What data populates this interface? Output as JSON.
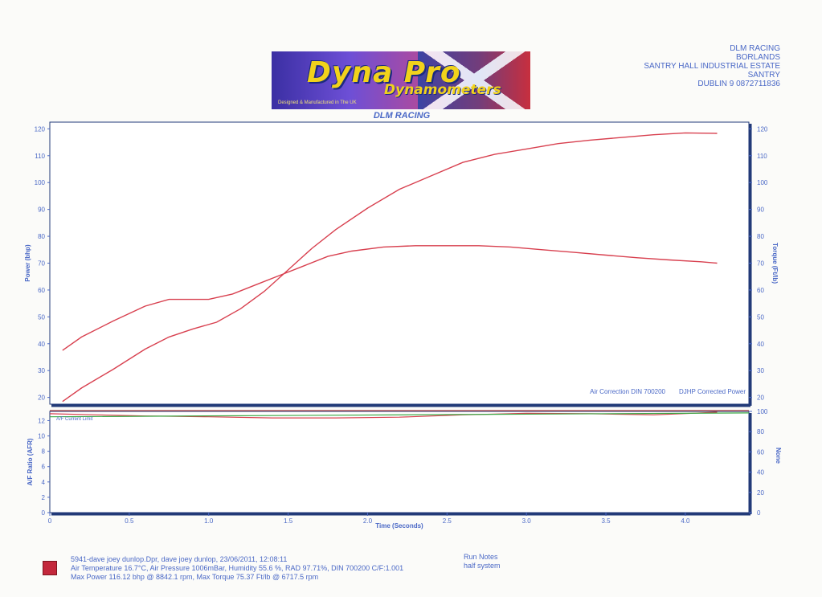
{
  "banner": {
    "title": "Dyna Pro",
    "subtitle": "Dynamometers",
    "tagline": "Designed & Manufactured in The UK"
  },
  "address": {
    "line1": "DLM RACING",
    "line2": "BORLANDS",
    "line3": "SANTRY HALL INDUSTRIAL ESTATE",
    "line4": "SANTRY",
    "line5": "DUBLIN 9 0872711836"
  },
  "header_title": "DLM RACING",
  "colors": {
    "axis": "#4a68c6",
    "curve": "#d8404f",
    "afr_green": "#3aa845",
    "afr_target": "#b84a4a",
    "frame": "#223a78"
  },
  "chart_data": [
    {
      "type": "line",
      "xlabel": "Time (Seconds)",
      "ylabel": "Power (bhp)",
      "y2label": "Torque (Ft/lb)",
      "xlim": [
        0,
        4.4
      ],
      "ylim": [
        17.5,
        122.5
      ],
      "y2lim": [
        17.5,
        122.5
      ],
      "x_ticks": [
        "0",
        "0.5",
        "1.0",
        "1.5",
        "2.0",
        "2.5",
        "3.0",
        "3.5",
        "4.0"
      ],
      "y_ticks": [
        "20",
        "30",
        "40",
        "50",
        "60",
        "70",
        "80",
        "90",
        "100",
        "110",
        "120"
      ],
      "y2_ticks": [
        "20",
        "30",
        "40",
        "50",
        "60",
        "70",
        "80",
        "90",
        "100",
        "110",
        "120"
      ],
      "notes": [
        "Air Correction DIN 700200",
        "DJHP Corrected Power"
      ],
      "series": [
        {
          "axis": "left",
          "x": [
            0.08,
            0.2,
            0.4,
            0.6,
            0.75,
            0.9,
            1.05,
            1.2,
            1.35,
            1.5,
            1.65,
            1.8,
            2.0,
            2.2,
            2.4,
            2.6,
            2.8,
            3.0,
            3.2,
            3.4,
            3.6,
            3.8,
            4.0,
            4.2
          ],
          "y": [
            18.5,
            23.5,
            30.5,
            38,
            42.5,
            45.5,
            48,
            53,
            59.5,
            67.5,
            75.5,
            82.5,
            90.5,
            97.5,
            102.5,
            107.5,
            110.5,
            112.5,
            114.5,
            115.8,
            116.8,
            117.8,
            118.5,
            118.3
          ]
        },
        {
          "axis": "right",
          "x": [
            0.08,
            0.2,
            0.4,
            0.6,
            0.75,
            0.9,
            1.0,
            1.15,
            1.3,
            1.45,
            1.6,
            1.75,
            1.9,
            2.1,
            2.3,
            2.5,
            2.7,
            2.9,
            3.1,
            3.3,
            3.5,
            3.7,
            3.9,
            4.1,
            4.2
          ],
          "y": [
            37.5,
            42.5,
            48.5,
            54,
            56.5,
            56.5,
            56.5,
            58.5,
            62,
            65.5,
            69,
            72.5,
            74.5,
            76,
            76.5,
            76.5,
            76.5,
            76,
            75,
            74,
            73,
            72,
            71.2,
            70.5,
            70
          ]
        }
      ]
    },
    {
      "type": "line",
      "ylabel": "A/F Ratio (AFR)",
      "y2label": "None",
      "xlim": [
        0,
        4.4
      ],
      "ylim": [
        0,
        13.2
      ],
      "y2lim": [
        0,
        100
      ],
      "y_ticks": [
        "0",
        "2",
        "4",
        "6",
        "8",
        "10",
        "12"
      ],
      "y2_ticks": [
        "0",
        "20",
        "40",
        "60",
        "80",
        "100"
      ],
      "legend_text": "A/F Current Limit",
      "series": [
        {
          "x": [
            0.0,
            0.3,
            0.6,
            1.0,
            1.4,
            1.8,
            2.2,
            2.6,
            3.0,
            3.4,
            3.8,
            4.2
          ],
          "y": [
            12.9,
            12.75,
            12.6,
            12.5,
            12.35,
            12.35,
            12.45,
            12.75,
            12.95,
            12.9,
            12.75,
            13.1
          ]
        },
        {
          "x": [
            0.0,
            4.4
          ],
          "y": [
            12.5,
            13.0
          ]
        },
        {
          "x": [
            0.0,
            4.4
          ],
          "y": [
            13.3,
            13.3
          ]
        }
      ]
    }
  ],
  "footer": {
    "run_line": "5941-dave joey dunlop.Dpr,   dave joey dunlop,   23/06/2011,   12:08:11",
    "conditions": "Air Temperature 16.7°C, Air Pressure 1006mBar, Humidity 55.6 %, RAD 97.71%,   DIN 700200  C/F:1.001",
    "max_line": "Max Power 116.12 bhp @ 8842.1 rpm, Max Torque 75.37 Ft/lb @ 6717.5 rpm",
    "notes_title": "Run Notes",
    "notes_text": "half system"
  }
}
